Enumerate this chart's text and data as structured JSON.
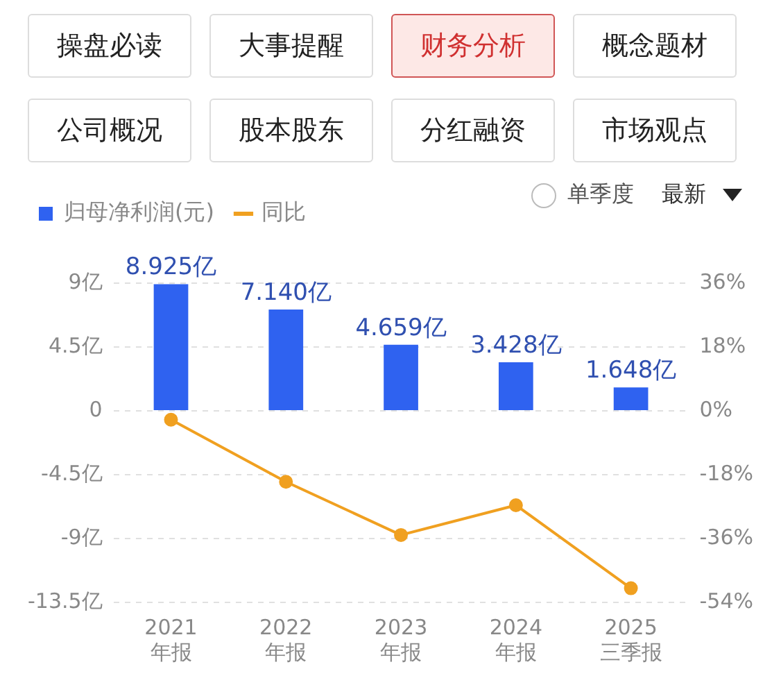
{
  "chart_data": [
    {
      "type": "other",
      "annotations": [
        "操盘必读",
        "大事提醒",
        "财务分析",
        "概念题材",
        "公司概况",
        "股本股东",
        "分红融资",
        "市场观点",
        "单季度",
        "最新"
      ]
    },
    {
      "type": "bar",
      "categories": [
        "2021 年报",
        "2022 年报",
        "2023 年报",
        "2024 年报",
        "2025 三季报"
      ],
      "series": [
        {
          "name": "归母净利润(元)",
          "type": "bar",
          "color": "#2f62f0",
          "values": [
            8.925,
            7.14,
            4.659,
            3.428,
            1.648
          ],
          "value_labels": [
            "8.925亿",
            "7.140亿",
            "4.659亿",
            "3.428亿",
            "1.648亿"
          ]
        },
        {
          "name": "同比",
          "type": "line",
          "axis": "y2",
          "color": "#f0a020",
          "values": [
            -2.5,
            -20,
            -35,
            -26.6,
            -50
          ]
        }
      ],
      "ylim": [
        -13.5,
        9
      ],
      "yticks": [
        {
          "value": -13.5,
          "label": "-13.5亿"
        },
        {
          "value": -9,
          "label": "-9亿"
        },
        {
          "value": -4.5,
          "label": "-4.5亿"
        },
        {
          "value": 0,
          "label": "0"
        },
        {
          "value": 4.5,
          "label": "4.5亿"
        },
        {
          "value": 9,
          "label": "9亿"
        }
      ],
      "y2lim": [
        -54,
        36
      ],
      "y2ticks": [
        {
          "value": -54,
          "label": "-54%"
        },
        {
          "value": -36,
          "label": "-36%"
        },
        {
          "value": -18,
          "label": "-18%"
        },
        {
          "value": 0,
          "label": "0%"
        },
        {
          "value": 18,
          "label": "18%"
        },
        {
          "value": 36,
          "label": "36%"
        }
      ],
      "grid": "y",
      "legend": "top left",
      "marker": "circle",
      "line_style": "solid"
    }
  ]
}
